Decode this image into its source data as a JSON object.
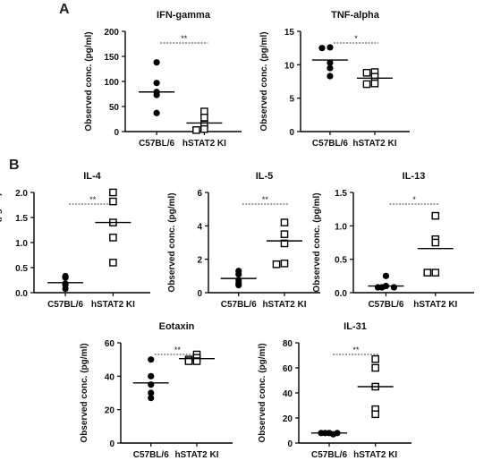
{
  "panels": [
    {
      "letter": "A"
    },
    {
      "letter": "B"
    }
  ],
  "chart_data": [
    {
      "type": "scatter",
      "title": "IFN-gamma",
      "ylabel": "Observed conc. (pg/ml)",
      "ylim": [
        0,
        200
      ],
      "yticks": [
        "0",
        "50",
        "100",
        "150",
        "200"
      ],
      "categories": [
        "C57BL/6",
        "hSTAT2 KI"
      ],
      "significance": "**",
      "series": [
        {
          "points": [
            138,
            97,
            79,
            73,
            37
          ],
          "mean": 79,
          "marker": "filled-circle"
        },
        {
          "points": [
            40,
            28,
            14,
            5,
            3
          ],
          "mean": 17,
          "marker": "open-square"
        }
      ]
    },
    {
      "type": "scatter",
      "title": "TNF-alpha",
      "ylabel": "Observed conc. (pg/ml)",
      "ylim": [
        0,
        15
      ],
      "yticks": [
        "0",
        "5",
        "10",
        "15"
      ],
      "categories": [
        "C57BL/6",
        "hSTAT2 KI"
      ],
      "significance": "*",
      "series": [
        {
          "points": [
            12.6,
            12.5,
            10.3,
            9.5,
            8.3
          ],
          "mean": 10.7,
          "marker": "filled-circle"
        },
        {
          "points": [
            8.9,
            8.8,
            8.2,
            7.2,
            7.1
          ],
          "mean": 8.0,
          "marker": "open-square"
        }
      ]
    },
    {
      "type": "scatter",
      "title": "IL-4",
      "ylabel": "Observed conc. (pg/ml)",
      "ylim": [
        0,
        2
      ],
      "yticks": [
        "0.0",
        "0.5",
        "1.0",
        "1.5",
        "2.0"
      ],
      "categories": [
        "C57BL/6",
        "hSTAT2 KI"
      ],
      "significance": "**",
      "series": [
        {
          "points": [
            0.33,
            0.3,
            0.18,
            0.16,
            0.08
          ],
          "mean": 0.2,
          "marker": "filled-circle"
        },
        {
          "points": [
            2.0,
            1.82,
            1.4,
            1.1,
            0.6
          ],
          "mean": 1.4,
          "marker": "open-square"
        }
      ]
    },
    {
      "type": "scatter",
      "title": "IL-5",
      "ylabel": "Observed conc. (pg/ml)",
      "ylim": [
        0,
        6
      ],
      "yticks": [
        "0",
        "2",
        "4",
        "6"
      ],
      "categories": [
        "C57BL/6",
        "hSTAT2 KI"
      ],
      "significance": "**",
      "series": [
        {
          "points": [
            1.3,
            1.1,
            0.75,
            0.55,
            0.45
          ],
          "mean": 0.85,
          "marker": "filled-circle"
        },
        {
          "points": [
            4.2,
            3.5,
            2.95,
            1.75,
            1.7
          ],
          "mean": 3.1,
          "marker": "open-square"
        }
      ]
    },
    {
      "type": "scatter",
      "title": "IL-13",
      "ylabel": "Observed conc. (pg/ml)",
      "ylim": [
        0,
        1.5
      ],
      "yticks": [
        "0.0",
        "0.5",
        "1.0",
        "1.5"
      ],
      "categories": [
        "C57BL/6",
        "hSTAT2 KI"
      ],
      "significance": "*",
      "series": [
        {
          "points": [
            0.25,
            0.1,
            0.08,
            0.08,
            0.08
          ],
          "mean": 0.1,
          "marker": "filled-circle"
        },
        {
          "points": [
            1.15,
            0.8,
            0.75,
            0.3,
            0.3
          ],
          "mean": 0.66,
          "marker": "open-square"
        }
      ]
    },
    {
      "type": "scatter",
      "title": "Eotaxin",
      "ylabel": "Observed conc. (pg/ml)",
      "ylim": [
        0,
        60
      ],
      "yticks": [
        "0",
        "20",
        "40",
        "60"
      ],
      "categories": [
        "C57BL/6",
        "hSTAT2 KI"
      ],
      "significance": "**",
      "series": [
        {
          "points": [
            50,
            40,
            35,
            30,
            27
          ],
          "mean": 36,
          "marker": "filled-circle"
        },
        {
          "points": [
            53,
            51,
            50,
            49,
            49
          ],
          "mean": 50.5,
          "marker": "open-square"
        }
      ]
    },
    {
      "type": "scatter",
      "title": "IL-31",
      "ylabel": "Observed conc. (pg/ml)",
      "ylim": [
        0,
        80
      ],
      "yticks": [
        "0",
        "20",
        "40",
        "60",
        "80"
      ],
      "categories": [
        "C57BL/6",
        "hSTAT2 KI"
      ],
      "significance": "**",
      "series": [
        {
          "points": [
            8,
            8,
            8,
            8,
            7
          ],
          "mean": 8,
          "marker": "filled-circle"
        },
        {
          "points": [
            67,
            60,
            45,
            27,
            23
          ],
          "mean": 45,
          "marker": "open-square"
        }
      ]
    }
  ]
}
